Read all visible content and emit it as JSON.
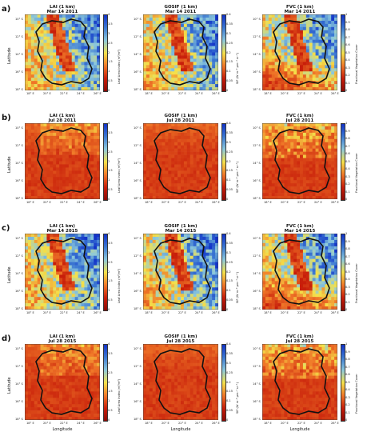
{
  "figure": {
    "rows": [
      {
        "label": "a)",
        "date": "Mar 14 2011",
        "kind": "wet"
      },
      {
        "label": "b)",
        "date": "Jul 28 2011",
        "kind": "dry"
      },
      {
        "label": "c)",
        "date": "Mar 14 2015",
        "kind": "wet"
      },
      {
        "label": "d)",
        "date": "Jul 28 2015",
        "kind": "dry"
      }
    ],
    "columns": [
      {
        "title": "LAI (1 km)",
        "cbar_label": "Leaf Area Index (m²/m²)",
        "ticks": [
          "4",
          "3.5",
          "3",
          "2.5",
          "2",
          "1.5",
          "1",
          "0.5",
          "0"
        ]
      },
      {
        "title": "GOSIF (1 km)",
        "cbar_label": "SIF (W m⁻² μm⁻¹ sr⁻¹)",
        "ticks": [
          "0.4",
          "0.35",
          "0.3",
          "0.25",
          "0.2",
          "0.15",
          "0.1",
          "0.05",
          "0"
        ]
      },
      {
        "title": "FVC (1 km)",
        "cbar_label": "Fractional Vegetation Cover",
        "ticks": [
          "1",
          "0.9",
          "0.8",
          "0.7",
          "0.6",
          "0.5",
          "0.4",
          "0.3",
          "0.2",
          "0.1",
          "0"
        ]
      }
    ],
    "lat_ticks": [
      "10° S",
      "12° S",
      "14° S",
      "16° S",
      "18° S"
    ],
    "lon_ticks": [
      "18° E",
      "20° E",
      "22° E",
      "24° E",
      "26° E"
    ],
    "ylabel": "Latitude",
    "xlabel": "Longitude",
    "colors": {
      "low": "#c81e0a",
      "mid": "#f4e14a",
      "high": "#1233c8",
      "boundary": "#111111"
    }
  }
}
